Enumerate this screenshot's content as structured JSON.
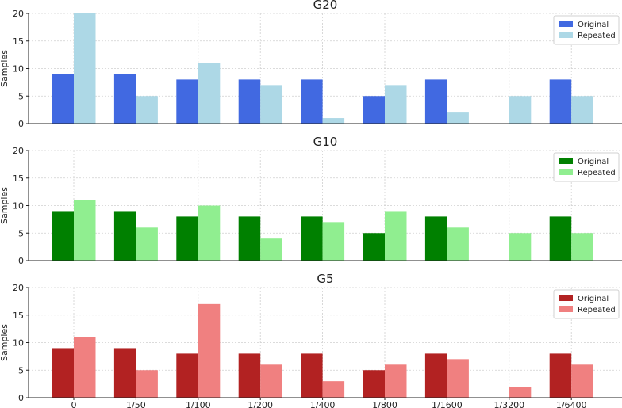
{
  "chart_data": [
    {
      "type": "bar",
      "title": "G20",
      "xlabel": "",
      "ylabel": "Samples",
      "ylim": [
        0,
        20
      ],
      "yticks": [
        0,
        5,
        10,
        15,
        20
      ],
      "categories": [
        "0",
        "1/50",
        "1/100",
        "1/200",
        "1/400",
        "1/800",
        "1/1600",
        "1/3200",
        "1/6400"
      ],
      "grid": true,
      "legend_position": "top-right",
      "series": [
        {
          "name": "Original",
          "color": "#4169e1",
          "values": [
            9,
            9,
            8,
            8,
            8,
            5,
            8,
            0,
            8
          ]
        },
        {
          "name": "Repeated",
          "color": "#add8e6",
          "values": [
            20,
            5,
            11,
            7,
            1,
            7,
            2,
            5,
            5
          ]
        }
      ]
    },
    {
      "type": "bar",
      "title": "G10",
      "xlabel": "",
      "ylabel": "Samples",
      "ylim": [
        0,
        20
      ],
      "yticks": [
        0,
        5,
        10,
        15,
        20
      ],
      "categories": [
        "0",
        "1/50",
        "1/100",
        "1/200",
        "1/400",
        "1/800",
        "1/1600",
        "1/3200",
        "1/6400"
      ],
      "grid": true,
      "legend_position": "top-right",
      "series": [
        {
          "name": "Original",
          "color": "#008000",
          "values": [
            9,
            9,
            8,
            8,
            8,
            5,
            8,
            0,
            8
          ]
        },
        {
          "name": "Repeated",
          "color": "#90ee90",
          "values": [
            11,
            6,
            10,
            4,
            7,
            9,
            6,
            5,
            5
          ]
        }
      ]
    },
    {
      "type": "bar",
      "title": "G5",
      "xlabel": "",
      "ylabel": "Samples",
      "ylim": [
        0,
        20
      ],
      "yticks": [
        0,
        5,
        10,
        15,
        20
      ],
      "categories": [
        "0",
        "1/50",
        "1/100",
        "1/200",
        "1/400",
        "1/800",
        "1/1600",
        "1/3200",
        "1/6400"
      ],
      "grid": true,
      "legend_position": "top-right",
      "show_xticklabels": true,
      "series": [
        {
          "name": "Original",
          "color": "#b22222",
          "values": [
            9,
            9,
            8,
            8,
            8,
            5,
            8,
            0,
            8
          ]
        },
        {
          "name": "Repeated",
          "color": "#f08080",
          "values": [
            11,
            5,
            17,
            6,
            3,
            6,
            7,
            2,
            6
          ]
        }
      ]
    }
  ]
}
